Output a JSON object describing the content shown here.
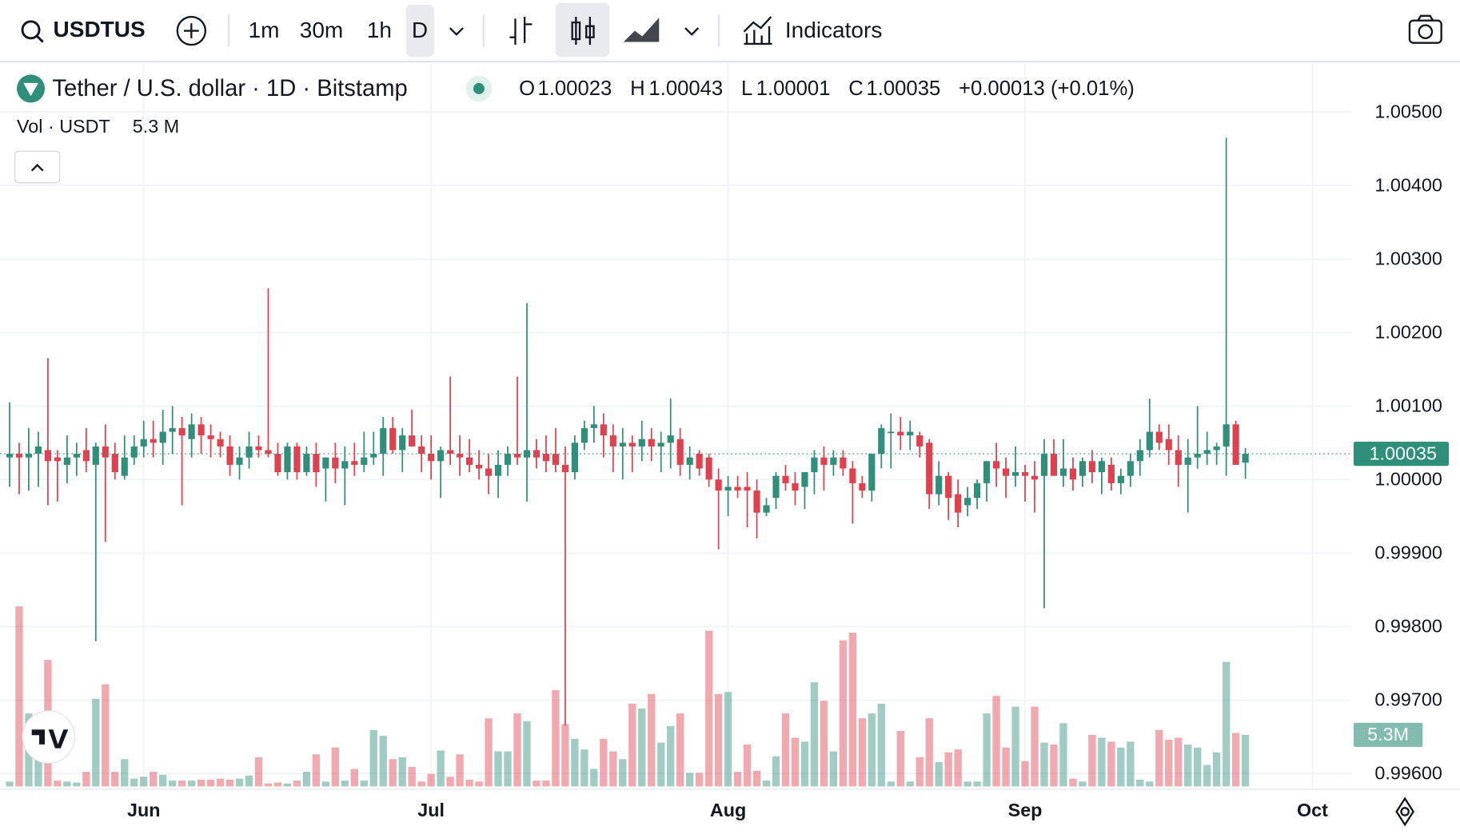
{
  "toolbar": {
    "symbol": "USDTUS",
    "intervals": [
      "1m",
      "30m",
      "1h",
      "D"
    ],
    "indicators": "Indicators"
  },
  "legend": {
    "title": "Tether / U.S. dollar · 1D · Bitstamp",
    "o_label": "O",
    "o": "1.00023",
    "h_label": "H",
    "h": "1.00043",
    "l_label": "L",
    "l": "1.00001",
    "c_label": "C",
    "c": "1.00035",
    "change": "+0.00013 (+0.01%)",
    "vol_label": "Vol · USDT",
    "vol": "5.3 M"
  },
  "chart_data": {
    "type": "candlestick",
    "up_color": "#2f8f7a",
    "down_color": "#e0414f",
    "last_price_label": "1.00035",
    "last_volume_label": "5.3M",
    "xlim": [
      -1,
      140
    ],
    "xticks": [
      {
        "value": 14,
        "label": "Jun"
      },
      {
        "value": 44,
        "label": "Jul"
      },
      {
        "value": 75,
        "label": "Aug"
      },
      {
        "value": 106,
        "label": "Sep"
      },
      {
        "value": 136,
        "label": "Oct"
      }
    ],
    "ylim": [
      0.9958,
      1.00566
    ],
    "yticks": [
      {
        "value": 0.996,
        "label": "0.99600"
      },
      {
        "value": 0.997,
        "label": "0.99700"
      },
      {
        "value": 0.998,
        "label": "0.99800"
      },
      {
        "value": 0.999,
        "label": "0.99900"
      },
      {
        "value": 1,
        "label": "1.00000"
      },
      {
        "value": 1.001,
        "label": "1.00100"
      },
      {
        "value": 1.002,
        "label": "1.00200"
      },
      {
        "value": 1.003,
        "label": "1.00300"
      },
      {
        "value": 1.004,
        "label": "1.00400"
      },
      {
        "value": 1.005,
        "label": "1.00500"
      }
    ],
    "grid": true,
    "open": [
      1.0003,
      1.00035,
      1.0003,
      1.00035,
      1.0004,
      1.0003,
      1.0002,
      1.0003,
      1.0004,
      1.0002,
      1.00045,
      1.00035,
      1.00005,
      1.0003,
      1.00045,
      1.00055,
      1.0005,
      1.00065,
      1.0007,
      1.00055,
      1.00075,
      1.0006,
      1.00055,
      1.00045,
      1.0002,
      1.0003,
      1.00045,
      1.0004,
      1.00035,
      1.0001,
      1.00045,
      1.0001,
      1.00035,
      1.00015,
      1.0003,
      1.00015,
      1.00025,
      1.0002,
      1.0003,
      1.00035,
      1.0007,
      1.0004,
      1.0006,
      1.00045,
      1.00035,
      1.00025,
      1.0004,
      1.00035,
      1.0003,
      1.0002,
      1.00015,
      1.00005,
      1.0002,
      1.00035,
      1.0003,
      1.0004,
      1.00035,
      1.00035,
      1.0002,
      1.0001,
      1.0005,
      1.0007,
      1.00075,
      1.0006,
      1.00045,
      1.0005,
      1.00045,
      1.00055,
      1.00045,
      1.0005,
      1.00055,
      1.0002,
      1.00035,
      1.0003,
      1,
      0.99985,
      0.9999,
      0.9999,
      0.99985,
      0.99955,
      0.99975,
      1.00005,
      0.99995,
      0.9999,
      1.0001,
      1.0003,
      1.0002,
      1.0003,
      1.00015,
      0.99995,
      0.99985,
      1.00035,
      1.00065,
      1.00065,
      1.0006,
      1.0006,
      1.0005,
      0.9998,
      1.00005,
      0.9998,
      0.99965,
      0.99975,
      0.99995,
      1.00025,
      1.00015,
      1.00005,
      1.0001,
      1.00005,
      1.00005,
      1.00035,
      1.00005,
      1.00015,
      1.00005,
      1.00025,
      1.0001,
      1.0002,
      0.99995,
      1.00005,
      1.00025,
      1.0004,
      1.00065,
      1.00055,
      1.0004,
      1.0002,
      1.0003,
      1.00035,
      1.0004,
      1.00045,
      1.00075,
      1.00023
    ],
    "high": [
      1.00105,
      1.0005,
      1.0007,
      1.00065,
      1.00165,
      1.0004,
      1.0006,
      1.0005,
      1.0007,
      1.0005,
      1.00075,
      1.0005,
      1.0006,
      1.0006,
      1.0008,
      1.0008,
      1.00095,
      1.001,
      1.00085,
      1.0009,
      1.00085,
      1.00075,
      1.00065,
      1.0006,
      1.00045,
      1.00065,
      1.0006,
      1.0026,
      1.0005,
      1.0005,
      1.0005,
      1.00045,
      1.0005,
      1.0003,
      1.0005,
      1.00045,
      1.0005,
      1.00065,
      1.00065,
      1.00085,
      1.00085,
      1.0007,
      1.00095,
      1.0006,
      1.0006,
      1.00045,
      1.0014,
      1.0006,
      1.00055,
      1.0004,
      1.00035,
      1.0004,
      1.00045,
      1.0014,
      1.0024,
      1.00055,
      1.0006,
      1.0007,
      1.00045,
      1.0006,
      1.0008,
      1.001,
      1.0009,
      1.00075,
      1.0007,
      1.0006,
      1.0008,
      1.0007,
      1.00065,
      1.0011,
      1.0007,
      1.00045,
      1.0004,
      1.00035,
      1.00015,
      1.00005,
      1.00005,
      1.0001,
      1,
      0.99975,
      1.0001,
      1.0002,
      1.0001,
      1.0001,
      1.0004,
      1.00045,
      1.0004,
      1.0004,
      1.00025,
      1.00005,
      1.00035,
      1.00075,
      1.0009,
      1.00085,
      1.0008,
      1.00065,
      1.00055,
      1.00025,
      1.0001,
      1,
      0.9999,
      1,
      1.00025,
      1.0005,
      1.0003,
      1.00045,
      1.0002,
      1.00025,
      1.00055,
      1.00055,
      1.00055,
      1.0003,
      1.0003,
      1.0004,
      1.0003,
      1.0003,
      1.00015,
      1.00035,
      1.00055,
      1.0011,
      1.00075,
      1.00075,
      1.0006,
      1.00055,
      1.001,
      1.00065,
      1.0005,
      1.00465,
      1.0008,
      1.00043
    ],
    "low": [
      0.9999,
      0.9998,
      0.99985,
      0.9999,
      0.99965,
      0.9997,
      0.99995,
      1.00005,
      1.0001,
      0.9978,
      0.99915,
      1,
      1,
      1.0002,
      1.0003,
      1.0003,
      1.0002,
      1.00035,
      0.99965,
      1.0003,
      1.00035,
      1.0003,
      1.0003,
      1.00005,
      1,
      1.00015,
      1.0003,
      1.0003,
      1.00005,
      1,
      1,
      1.00005,
      0.9999,
      0.9997,
      0.99995,
      0.99965,
      1.00005,
      1.0001,
      1.0002,
      1.00005,
      1.00035,
      1.0001,
      1.00045,
      1.0001,
      1,
      0.99975,
      1.0002,
      1.00005,
      1.0001,
      1,
      0.9998,
      0.99975,
      1.00005,
      1.0002,
      0.9997,
      1.00015,
      1.0001,
      1.0001,
      0.99665,
      1,
      1.0004,
      1.0005,
      1.0003,
      1.0001,
      1,
      1.0001,
      1.00025,
      1.00025,
      1.0001,
      1.00015,
      1.00005,
      1,
      1.00005,
      0.9999,
      0.99905,
      0.9995,
      0.99975,
      0.99935,
      0.9992,
      0.9995,
      0.9996,
      0.99985,
      0.99965,
      0.9996,
      0.9998,
      0.99985,
      1.00005,
      1.00005,
      0.9994,
      0.99975,
      0.9997,
      1.00015,
      1.00015,
      1.0004,
      1.0004,
      1.0003,
      0.9996,
      0.99965,
      0.99945,
      0.99935,
      0.9995,
      0.9996,
      0.9997,
      0.9999,
      0.99975,
      0.9999,
      0.9997,
      0.99955,
      0.99825,
      1.00005,
      0.9999,
      0.99985,
      0.9999,
      0.99995,
      0.9998,
      0.99985,
      0.9998,
      0.9999,
      1.00005,
      1.0003,
      1.0004,
      1.0002,
      0.9999,
      0.99955,
      1.00015,
      1.0002,
      1.0002,
      1.00005,
      1.0002,
      1.00001
    ],
    "close": [
      1.00035,
      1.0003,
      1.00035,
      1.00045,
      1.00025,
      1.00025,
      1.0003,
      1.00035,
      1.00025,
      1.00045,
      1.0003,
      1.0001,
      1.0003,
      1.00045,
      1.00055,
      1.0005,
      1.00065,
      1.0007,
      1.0006,
      1.00075,
      1.0006,
      1.00055,
      1.00045,
      1.0002,
      1.0003,
      1.00045,
      1.0004,
      1.00035,
      1.0001,
      1.00045,
      1.0001,
      1.00035,
      1.0001,
      1.0003,
      1.00015,
      1.00025,
      1.0002,
      1.0003,
      1.00035,
      1.0007,
      1.0004,
      1.0006,
      1.00045,
      1.00035,
      1.00025,
      1.0004,
      1.00035,
      1.0003,
      1.0002,
      1.00015,
      1.00005,
      1.0002,
      1.00035,
      1.0003,
      1.0004,
      1.0003,
      1.00025,
      1.0002,
      1.0001,
      1.0005,
      1.0007,
      1.00075,
      1.0006,
      1.00045,
      1.0005,
      1.00045,
      1.00055,
      1.00045,
      1.0005,
      1.0006,
      1.0002,
      1.0003,
      1.00015,
      1,
      0.99985,
      0.9999,
      0.99985,
      0.99985,
      0.99955,
      0.99965,
      1.00005,
      0.99995,
      0.99985,
      1.0001,
      1.0003,
      1.0002,
      1.0003,
      1.00015,
      0.99995,
      0.99985,
      1.00035,
      1.0007,
      1.00065,
      1.0006,
      1.00065,
      1.00045,
      0.9998,
      1.00005,
      0.99975,
      0.99955,
      0.99975,
      0.99995,
      1.00025,
      1.00015,
      1.00005,
      1.0001,
      1.00005,
      1,
      1.00035,
      1.00005,
      1.00015,
      1,
      1.00025,
      1.0001,
      1.00025,
      0.99995,
      1.00005,
      1.00025,
      1.0004,
      1.00065,
      1.0005,
      1.0004,
      1.0002,
      1.0003,
      1.00035,
      1.0004,
      1.00045,
      1.00075,
      1.0002,
      1.00035
    ],
    "volume": [
      0.5,
      18.5,
      7.5,
      6.5,
      13,
      0.6,
      0.5,
      0.4,
      1.5,
      9,
      10.5,
      1.5,
      2.8,
      0.8,
      1,
      1.5,
      1.2,
      0.6,
      0.6,
      0.6,
      0.7,
      0.7,
      0.8,
      0.7,
      0.8,
      1.1,
      3,
      0.3,
      0.4,
      0.3,
      0.6,
      1.5,
      3.3,
      0.5,
      4,
      0.6,
      1.8,
      0.6,
      5.8,
      5.2,
      2.8,
      3,
      2,
      0.5,
      1.3,
      3.7,
      1,
      3.3,
      0.7,
      0.5,
      7,
      3.6,
      3.6,
      7.5,
      6.7,
      0.6,
      0.6,
      9.9,
      6.4,
      4.9,
      3.8,
      1.8,
      4.9,
      3.6,
      2.8,
      8.5,
      8,
      9.5,
      4.5,
      6.2,
      7.5,
      1.4,
      1.4,
      16,
      9.5,
      9.7,
      1.5,
      4.3,
      1.6,
      0.6,
      3.1,
      7.5,
      5,
      4.6,
      10.7,
      8.8,
      3.6,
      15,
      15.8,
      7,
      7.5,
      8.5,
      0.5,
      5.7,
      0.5,
      3,
      7,
      2.5,
      3.5,
      3.8,
      0.5,
      0.5,
      7.5,
      9.3,
      4,
      8.2,
      2.6,
      8.2,
      4.5,
      4.3,
      6.5,
      0.8,
      0.5,
      5.3,
      5,
      4.6,
      4,
      4.6,
      0.7,
      0.5,
      5.8,
      4.8,
      5,
      4.3,
      4,
      2.2,
      3.5,
      12.8,
      5.5,
      5.3
    ]
  }
}
